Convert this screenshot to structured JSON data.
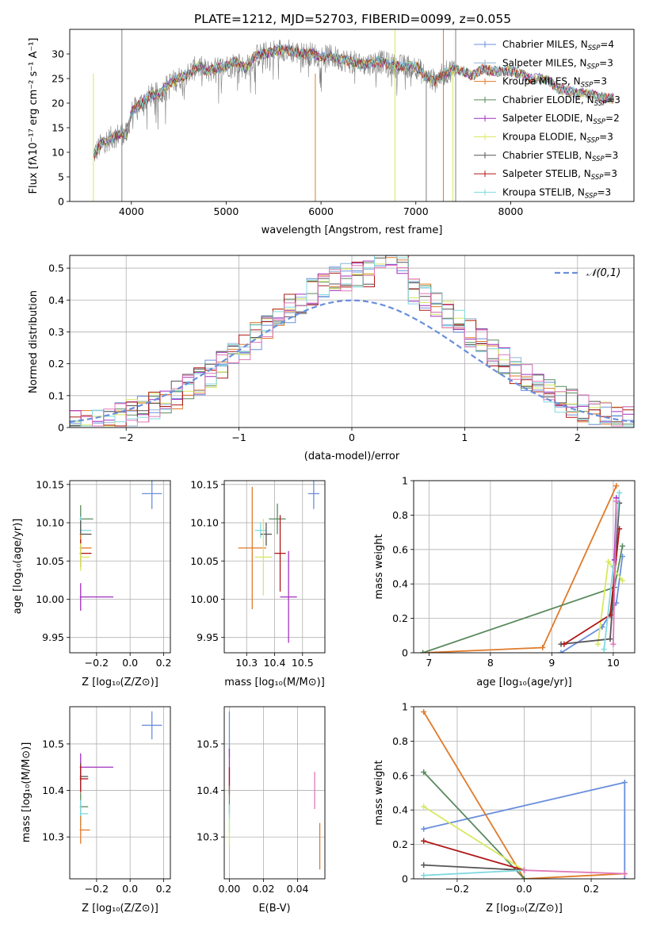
{
  "figure": {
    "title": "PLATE=1212, MJD=52703, FIBERID=0099, z=0.055"
  },
  "colors": {
    "chabrier_miles": "#6a8fdc",
    "salpeter_miles": "#8fb6d8",
    "kroupa_miles": "#e07a2a",
    "chabrier_elodie": "#5a8a5e",
    "salpeter_elodie": "#a030c0",
    "kroupa_elodie": "#d8e860",
    "chabrier_stelib": "#555555",
    "salpeter_stelib": "#b01818",
    "kroupa_stelib": "#80d8e0",
    "pink": "#e078b8",
    "data": "#808080",
    "normal_curve": "#6a8fdc"
  },
  "chart_data": [
    {
      "id": "spectrum",
      "type": "line",
      "xlabel": "wavelength [Angstrom, rest frame]",
      "ylabel": "Flux [fλ10⁻¹⁷ erg cm⁻² s⁻¹ A⁻¹]",
      "xlim": [
        3350,
        9300
      ],
      "ylim": [
        0,
        35
      ],
      "xticks": [
        4000,
        5000,
        6000,
        7000,
        8000
      ],
      "yticks": [
        0,
        5,
        10,
        15,
        20,
        25,
        30
      ],
      "legend_position": "top-right",
      "legend": [
        {
          "name": "Chabrier MILES, N",
          "sub": "SSP",
          "suffix": "=4",
          "color": "#6a8fdc"
        },
        {
          "name": "Salpeter MILES, N",
          "sub": "SSP",
          "suffix": "=3",
          "color": "#8fb6d8"
        },
        {
          "name": "Kroupa MILES, N",
          "sub": "SSP",
          "suffix": "=3",
          "color": "#e07a2a"
        },
        {
          "name": "Chabrier ELODIE, N",
          "sub": "SSP",
          "suffix": "=3",
          "color": "#5a8a5e"
        },
        {
          "name": "Salpeter ELODIE, N",
          "sub": "SSP",
          "suffix": "=2",
          "color": "#a030c0"
        },
        {
          "name": "Kroupa ELODIE, N",
          "sub": "SSP",
          "suffix": "=3",
          "color": "#d8e860"
        },
        {
          "name": "Chabrier STELIB, N",
          "sub": "SSP",
          "suffix": "=3",
          "color": "#555555"
        },
        {
          "name": "Salpeter STELIB, N",
          "sub": "SSP",
          "suffix": "=3",
          "color": "#b01818"
        },
        {
          "name": "Kroupa STELIB, N",
          "sub": "SSP",
          "suffix": "=3",
          "color": "#80d8e0"
        }
      ],
      "continuum": [
        [
          3600,
          9.5
        ],
        [
          3700,
          12
        ],
        [
          3800,
          13
        ],
        [
          3900,
          14
        ],
        [
          3950,
          13.5
        ],
        [
          4000,
          18
        ],
        [
          4100,
          20
        ],
        [
          4200,
          21.5
        ],
        [
          4300,
          22
        ],
        [
          4400,
          24
        ],
        [
          4500,
          25
        ],
        [
          4600,
          26
        ],
        [
          4700,
          27.5
        ],
        [
          4800,
          26.5
        ],
        [
          4900,
          27
        ],
        [
          5000,
          27.5
        ],
        [
          5100,
          28.5
        ],
        [
          5200,
          27
        ],
        [
          5300,
          29.5
        ],
        [
          5400,
          30
        ],
        [
          5500,
          30.5
        ],
        [
          5600,
          31
        ],
        [
          5700,
          30.5
        ],
        [
          5800,
          30
        ],
        [
          5900,
          30
        ],
        [
          6000,
          29.5
        ],
        [
          6100,
          29.5
        ],
        [
          6200,
          29
        ],
        [
          6300,
          28.5
        ],
        [
          6400,
          28
        ],
        [
          6500,
          28
        ],
        [
          6600,
          28.5
        ],
        [
          6700,
          28
        ],
        [
          6800,
          27.5
        ],
        [
          6900,
          27.5
        ],
        [
          7000,
          27.5
        ],
        [
          7100,
          25.5
        ],
        [
          7200,
          24.5
        ],
        [
          7300,
          26
        ],
        [
          7400,
          27
        ],
        [
          7500,
          26.5
        ],
        [
          7600,
          25.5
        ],
        [
          7700,
          27
        ],
        [
          7800,
          26.5
        ],
        [
          7900,
          26.5
        ],
        [
          8000,
          26.5
        ],
        [
          8100,
          26
        ],
        [
          8200,
          25
        ],
        [
          8300,
          25
        ],
        [
          8400,
          24.5
        ],
        [
          8500,
          23
        ],
        [
          8600,
          22.5
        ],
        [
          8700,
          22
        ],
        [
          8800,
          22
        ],
        [
          8900,
          21.5
        ],
        [
          9000,
          21
        ],
        [
          9100,
          21
        ]
      ],
      "bad_pixels": [
        3600,
        3900,
        5940,
        6780,
        7110,
        7290,
        7390,
        7420
      ]
    },
    {
      "id": "residuals",
      "type": "histogram",
      "xlabel": "(data-model)/error",
      "ylabel": "Normed distribution",
      "xlim": [
        -2.5,
        2.5
      ],
      "ylim": [
        0,
        0.54
      ],
      "xticks": [
        -2,
        -1,
        0,
        1,
        2
      ],
      "yticks": [
        0.0,
        0.1,
        0.2,
        0.3,
        0.4,
        0.5
      ],
      "legend": "S(0, 1)",
      "legend_label": "𝒩(0,1)",
      "legend_position": "top-right",
      "bin_width": 0.1
    },
    {
      "id": "age_vs_Z",
      "type": "errorbar",
      "xlabel": "Z [log₁₀(Z/Z⊙)]",
      "ylabel": "age  [log₁₀(age/yr)]",
      "xlim": [
        -0.36,
        0.24
      ],
      "ylim": [
        9.93,
        10.155
      ],
      "xticks": [
        -0.2,
        0.0,
        0.2
      ],
      "xticklabels": [
        "−0.2",
        "0.0",
        "0.2"
      ],
      "yticks": [
        9.95,
        10.0,
        10.05,
        10.1,
        10.15
      ],
      "points": [
        {
          "x": 0.13,
          "y": 10.138,
          "xerr": 0.06,
          "yerr": 0.02,
          "color": "#6a8fdc"
        },
        {
          "x": -0.3,
          "y": 10.105,
          "xerr": 0.0,
          "yerr": 0.0,
          "color": "#5a8a5e",
          "x2": -0.22
        },
        {
          "x": -0.3,
          "y": 10.09,
          "xerr": 0.0,
          "yerr": 0.0,
          "color": "#80d8e0",
          "x2": -0.23
        },
        {
          "x": -0.3,
          "y": 10.085,
          "xerr": 0.0,
          "yerr": 0.0,
          "color": "#555555",
          "x2": -0.23
        },
        {
          "x": -0.3,
          "y": 10.067,
          "xerr": 0.0,
          "yerr": 0.0,
          "color": "#e07a2a",
          "x2": -0.23
        },
        {
          "x": -0.3,
          "y": 10.06,
          "xerr": 0.0,
          "yerr": 0.0,
          "color": "#b01818",
          "x2": -0.23
        },
        {
          "x": -0.3,
          "y": 10.055,
          "xerr": 0.0,
          "yerr": 0.0,
          "color": "#d8e860",
          "x2": -0.24
        },
        {
          "x": -0.3,
          "y": 10.003,
          "xerr": 0.0,
          "yerr": 0.0,
          "color": "#a030c0",
          "x2": -0.1
        }
      ]
    },
    {
      "id": "age_vs_mass",
      "type": "errorbar",
      "xlabel": "mass [log₁₀(M/M⊙)]",
      "ylabel": "",
      "xlim": [
        10.22,
        10.58
      ],
      "ylim": [
        9.93,
        10.155
      ],
      "xticks": [
        10.3,
        10.4,
        10.5
      ],
      "yticks": [
        9.95,
        10.0,
        10.05,
        10.1,
        10.15
      ],
      "points": [
        {
          "x": 10.54,
          "y": 10.138,
          "xerr": 0.02,
          "yerr": 0.02,
          "color": "#6a8fdc"
        },
        {
          "x": 10.41,
          "y": 10.105,
          "xerr": 0.03,
          "yerr": 0.02,
          "color": "#5a8a5e"
        },
        {
          "x": 10.35,
          "y": 10.09,
          "xerr": 0.02,
          "yerr": 0.01,
          "color": "#80d8e0"
        },
        {
          "x": 10.37,
          "y": 10.085,
          "xerr": 0.02,
          "yerr": 0.015,
          "color": "#555555"
        },
        {
          "x": 10.32,
          "y": 10.067,
          "xerr": 0.05,
          "yerr": 0.08,
          "color": "#e07a2a"
        },
        {
          "x": 10.42,
          "y": 10.06,
          "xerr": 0.02,
          "yerr": 0.05,
          "color": "#b01818"
        },
        {
          "x": 10.36,
          "y": 10.055,
          "xerr": 0.03,
          "yerr": 0.05,
          "color": "#d8e860"
        },
        {
          "x": 10.45,
          "y": 10.003,
          "xerr": 0.03,
          "yerr": 0.06,
          "color": "#a030c0"
        }
      ]
    },
    {
      "id": "weight_vs_age",
      "type": "line",
      "xlabel": "age  [log₁₀(age/yr)]",
      "ylabel": "mass weight",
      "xlim": [
        6.75,
        10.35
      ],
      "ylim": [
        0,
        1.0
      ],
      "xticks": [
        7,
        8,
        9,
        10
      ],
      "yticks": [
        0.0,
        0.2,
        0.4,
        0.6,
        0.8,
        1.0
      ],
      "series": [
        {
          "color": "#6a8fdc",
          "points": [
            [
              9.15,
              0.0
            ],
            [
              9.82,
              0.15
            ],
            [
              10.05,
              0.29
            ],
            [
              10.15,
              0.56
            ]
          ]
        },
        {
          "color": "#e07a2a",
          "points": [
            [
              6.9,
              0.0
            ],
            [
              8.85,
              0.03
            ],
            [
              10.05,
              0.97
            ]
          ]
        },
        {
          "color": "#5a8a5e",
          "points": [
            [
              6.9,
              0.0
            ],
            [
              10.02,
              0.38
            ],
            [
              10.15,
              0.62
            ]
          ]
        },
        {
          "color": "#d8e860",
          "points": [
            [
              9.75,
              0.05
            ],
            [
              9.92,
              0.53
            ],
            [
              10.15,
              0.42
            ]
          ]
        },
        {
          "color": "#555555",
          "points": [
            [
              9.15,
              0.05
            ],
            [
              9.95,
              0.08
            ],
            [
              10.1,
              0.87
            ]
          ]
        },
        {
          "color": "#b01818",
          "points": [
            [
              9.2,
              0.05
            ],
            [
              9.95,
              0.22
            ],
            [
              10.1,
              0.72
            ]
          ]
        },
        {
          "color": "#80d8e0",
          "points": [
            [
              9.85,
              0.02
            ],
            [
              10.0,
              0.5
            ],
            [
              10.1,
              0.93
            ]
          ]
        },
        {
          "color": "#a030c0",
          "points": [
            [
              10.02,
              0.54
            ],
            [
              10.05,
              0.9
            ]
          ]
        },
        {
          "color": "#e078b8",
          "points": [
            [
              10.0,
              0.05
            ],
            [
              10.05,
              0.88
            ]
          ]
        }
      ]
    },
    {
      "id": "mass_vs_Z",
      "type": "errorbar",
      "xlabel": "Z [log₁₀(Z/Z⊙)]",
      "ylabel": "mass [log₁₀(M/M⊙)]",
      "xlim": [
        -0.36,
        0.24
      ],
      "ylim": [
        10.21,
        10.58
      ],
      "xticks": [
        -0.2,
        0.0,
        0.2
      ],
      "xticklabels": [
        "−0.2",
        "0.0",
        "0.2"
      ],
      "yticks": [
        10.3,
        10.4,
        10.5
      ],
      "points": [
        {
          "x": 0.13,
          "y": 10.54,
          "xerr": 0.06,
          "yerr": 0.03,
          "color": "#6a8fdc"
        },
        {
          "x": -0.3,
          "y": 10.45,
          "xerr": 0.0,
          "yerr": 0.0,
          "color": "#a030c0",
          "x2": -0.1
        },
        {
          "x": -0.3,
          "y": 10.43,
          "xerr": 0.0,
          "yerr": 0.0,
          "color": "#555555",
          "x2": -0.25
        },
        {
          "x": -0.3,
          "y": 10.425,
          "xerr": 0.0,
          "yerr": 0.0,
          "color": "#b01818",
          "x2": -0.25
        },
        {
          "x": -0.3,
          "y": 10.365,
          "xerr": 0.0,
          "yerr": 0.0,
          "color": "#5a8a5e",
          "x2": -0.25
        },
        {
          "x": -0.3,
          "y": 10.35,
          "xerr": 0.0,
          "yerr": 0.0,
          "color": "#80d8e0",
          "x2": -0.25
        },
        {
          "x": -0.3,
          "y": 10.315,
          "xerr": 0.0,
          "yerr": 0.0,
          "color": "#e07a2a",
          "x2": -0.24
        }
      ]
    },
    {
      "id": "mass_vs_ebv",
      "type": "errorbar",
      "xlabel": "E(B-V)",
      "ylabel": "",
      "xlim": [
        -0.003,
        0.056
      ],
      "ylim": [
        10.21,
        10.58
      ],
      "xticks": [
        0.0,
        0.02,
        0.04
      ],
      "xticklabels": [
        "0.00",
        "0.02",
        "0.04"
      ],
      "yticks": [
        10.3,
        10.4,
        10.5
      ],
      "points": [
        {
          "x": 0.0,
          "y": 10.52,
          "xerr": 0.0,
          "yerr": 0.05,
          "color": "#6a8fdc"
        },
        {
          "x": 0.0,
          "y": 10.45,
          "xerr": 0.0,
          "yerr": 0.04,
          "color": "#a030c0"
        },
        {
          "x": 0.0,
          "y": 10.42,
          "xerr": 0.0,
          "yerr": 0.03,
          "color": "#b01818"
        },
        {
          "x": 0.0,
          "y": 10.38,
          "xerr": 0.0,
          "yerr": 0.03,
          "color": "#5a8a5e"
        },
        {
          "x": 0.0,
          "y": 10.34,
          "xerr": 0.0,
          "yerr": 0.03,
          "color": "#80d8e0"
        },
        {
          "x": 0.0,
          "y": 10.31,
          "xerr": 0.0,
          "yerr": 0.03,
          "color": "#d8e860"
        },
        {
          "x": 0.05,
          "y": 10.4,
          "xerr": 0.0,
          "yerr": 0.04,
          "color": "#e078b8"
        },
        {
          "x": 0.053,
          "y": 10.28,
          "xerr": 0.0,
          "yerr": 0.05,
          "color": "#e07a2a"
        }
      ]
    },
    {
      "id": "weight_vs_Z",
      "type": "line",
      "xlabel": "Z [log₁₀(Z/Z⊙)]",
      "ylabel": "mass weight",
      "xlim": [
        -0.33,
        0.33
      ],
      "ylim": [
        0,
        1.0
      ],
      "xticks": [
        -0.2,
        0.0,
        0.2
      ],
      "xticklabels": [
        "−0.2",
        "0.0",
        "0.2"
      ],
      "yticks": [
        0.0,
        0.2,
        0.4,
        0.6,
        0.8,
        1.0
      ],
      "series": [
        {
          "color": "#6a8fdc",
          "points": [
            [
              -0.3,
              0.29
            ],
            [
              0.3,
              0.56
            ],
            [
              0.3,
              0.0
            ]
          ]
        },
        {
          "color": "#e07a2a",
          "points": [
            [
              -0.3,
              0.97
            ],
            [
              0.0,
              0.0
            ],
            [
              0.3,
              0.03
            ]
          ]
        },
        {
          "color": "#5a8a5e",
          "points": [
            [
              -0.3,
              0.62
            ],
            [
              0.0,
              0.0
            ]
          ]
        },
        {
          "color": "#d8e860",
          "points": [
            [
              -0.3,
              0.42
            ],
            [
              0.0,
              0.05
            ]
          ]
        },
        {
          "color": "#555555",
          "points": [
            [
              -0.3,
              0.08
            ],
            [
              0.0,
              0.05
            ]
          ]
        },
        {
          "color": "#b01818",
          "points": [
            [
              -0.3,
              0.22
            ],
            [
              0.0,
              0.05
            ]
          ]
        },
        {
          "color": "#80d8e0",
          "points": [
            [
              -0.3,
              0.02
            ],
            [
              0.0,
              0.05
            ]
          ]
        },
        {
          "color": "#e078b8",
          "points": [
            [
              0.0,
              0.05
            ],
            [
              0.3,
              0.03
            ]
          ]
        }
      ]
    }
  ]
}
